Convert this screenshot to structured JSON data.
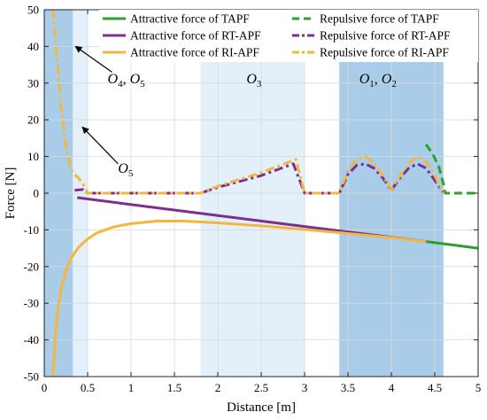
{
  "chart_data": {
    "type": "line",
    "xlabel": "Distance [m]",
    "ylabel": "Force [N]",
    "xlim": [
      0,
      5
    ],
    "ylim": [
      -50,
      50
    ],
    "xticks": [
      0,
      0.5,
      1,
      1.5,
      2,
      2.5,
      3,
      3.5,
      4,
      4.5,
      5
    ],
    "xtick_labels": [
      "0",
      "0.5",
      "1",
      "1.5",
      "2",
      "2.5",
      "3",
      "3.5",
      "4",
      "4.5",
      "5"
    ],
    "yticks": [
      -50,
      -40,
      -30,
      -20,
      -10,
      0,
      10,
      20,
      30,
      40,
      50
    ],
    "ytick_labels": [
      "-50",
      "-40",
      "-30",
      "-20",
      "-10",
      "0",
      "10",
      "20",
      "30",
      "40",
      "50"
    ],
    "grid": true,
    "legend_position": "top-right",
    "regions": [
      {
        "x0": 0.0,
        "x1": 0.33,
        "color": "#a9cde8"
      },
      {
        "x0": 0.33,
        "x1": 0.5,
        "color": "#e3f0fa"
      },
      {
        "x0": 1.8,
        "x1": 3.0,
        "color": "#e3f0fa"
      },
      {
        "x0": 3.4,
        "x1": 4.6,
        "color": "#a9cde8"
      }
    ],
    "region_labels": [
      {
        "main": "O",
        "sub": "4",
        "sep": ", ",
        "main2": "O",
        "sub2": "5",
        "x": 0.73,
        "y": 30
      },
      {
        "main": "O",
        "sub": "5",
        "sep": "",
        "main2": "",
        "sub2": "",
        "x": 0.85,
        "y": 5.5
      },
      {
        "main": "O",
        "sub": "3",
        "sep": "",
        "main2": "",
        "sub2": "",
        "x": 2.33,
        "y": 30
      },
      {
        "main": "O",
        "sub": "1",
        "sep": ", ",
        "main2": "O",
        "sub2": "2",
        "x": 3.63,
        "y": 30
      }
    ],
    "arrows": [
      {
        "from": [
          0.78,
          33
        ],
        "to": [
          0.36,
          40
        ]
      },
      {
        "from": [
          0.85,
          8
        ],
        "to": [
          0.44,
          18
        ]
      }
    ],
    "series": [
      {
        "name": "Attractive force of TAPF",
        "color": "#2ca02c",
        "dash": "solid",
        "x": [
          4.4,
          4.6,
          4.8,
          5.0
        ],
        "y": [
          -13.2,
          -13.8,
          -14.4,
          -15.0
        ]
      },
      {
        "name": "Attractive force of RT-APF",
        "color": "#7b2f90",
        "dash": "solid",
        "x": [
          0.38,
          1.0,
          2.0,
          3.0,
          4.0,
          4.4
        ],
        "y": [
          -1.2,
          -3.1,
          -6.1,
          -9.1,
          -12.0,
          -13.2
        ]
      },
      {
        "name": "Attractive force of RI-APF",
        "color": "#f3b63f",
        "dash": "solid",
        "x": [
          0.1,
          0.13,
          0.16,
          0.2,
          0.25,
          0.3,
          0.4,
          0.5,
          0.6,
          0.8,
          1.0,
          1.3,
          1.6,
          2.0,
          2.5,
          3.0,
          3.5,
          4.0,
          4.4
        ],
        "y": [
          -50,
          -38,
          -31,
          -25.5,
          -21,
          -18,
          -14.6,
          -12.5,
          -10.9,
          -9.2,
          -8.3,
          -7.6,
          -7.6,
          -8.1,
          -8.9,
          -9.9,
          -11.0,
          -12.1,
          -13.2
        ]
      },
      {
        "name": "Repulsive force of TAPF",
        "color": "#2ca02c",
        "dash": "dashed",
        "x": [
          4.4,
          4.48,
          4.55,
          4.6,
          4.62,
          5.0
        ],
        "y": [
          13.3,
          10.5,
          7.0,
          2.5,
          0,
          0
        ]
      },
      {
        "name": "Repulsive force of RT-APF",
        "color": "#7b2f90",
        "dash": "dashdot",
        "x": [
          0.35,
          0.45,
          0.5,
          1.8,
          2.0,
          2.5,
          2.87,
          3.0,
          3.35,
          3.4,
          3.5,
          3.6,
          3.7,
          3.8,
          3.9,
          4.0,
          4.1,
          4.2,
          4.3,
          4.4,
          4.5,
          4.6
        ],
        "y": [
          0.8,
          1.0,
          0,
          0,
          1.6,
          4.8,
          8.0,
          0,
          0,
          0,
          5.2,
          7.6,
          8.0,
          6.8,
          4.2,
          0.8,
          4.2,
          6.8,
          8.0,
          6.8,
          3.5,
          0
        ]
      },
      {
        "name": "Repulsive force of RI-APF",
        "color": "#f3b63f",
        "dash": "dashdot",
        "x": [
          0.1,
          0.14,
          0.2,
          0.25,
          0.3,
          0.33,
          0.4,
          0.46,
          0.5,
          1.8,
          2.0,
          2.5,
          2.9,
          3.0,
          3.35,
          3.4,
          3.5,
          3.6,
          3.7,
          3.8,
          3.9,
          4.0,
          4.1,
          4.2,
          4.3,
          4.4,
          4.5,
          4.6
        ],
        "y": [
          50,
          38,
          22,
          13,
          7,
          5.5,
          4,
          2,
          0,
          0,
          1.9,
          5.6,
          9.2,
          0,
          0,
          0,
          6.2,
          9.2,
          10.0,
          8.2,
          4.8,
          1.0,
          4.8,
          8.2,
          10.0,
          8.5,
          4.8,
          0
        ]
      }
    ]
  }
}
